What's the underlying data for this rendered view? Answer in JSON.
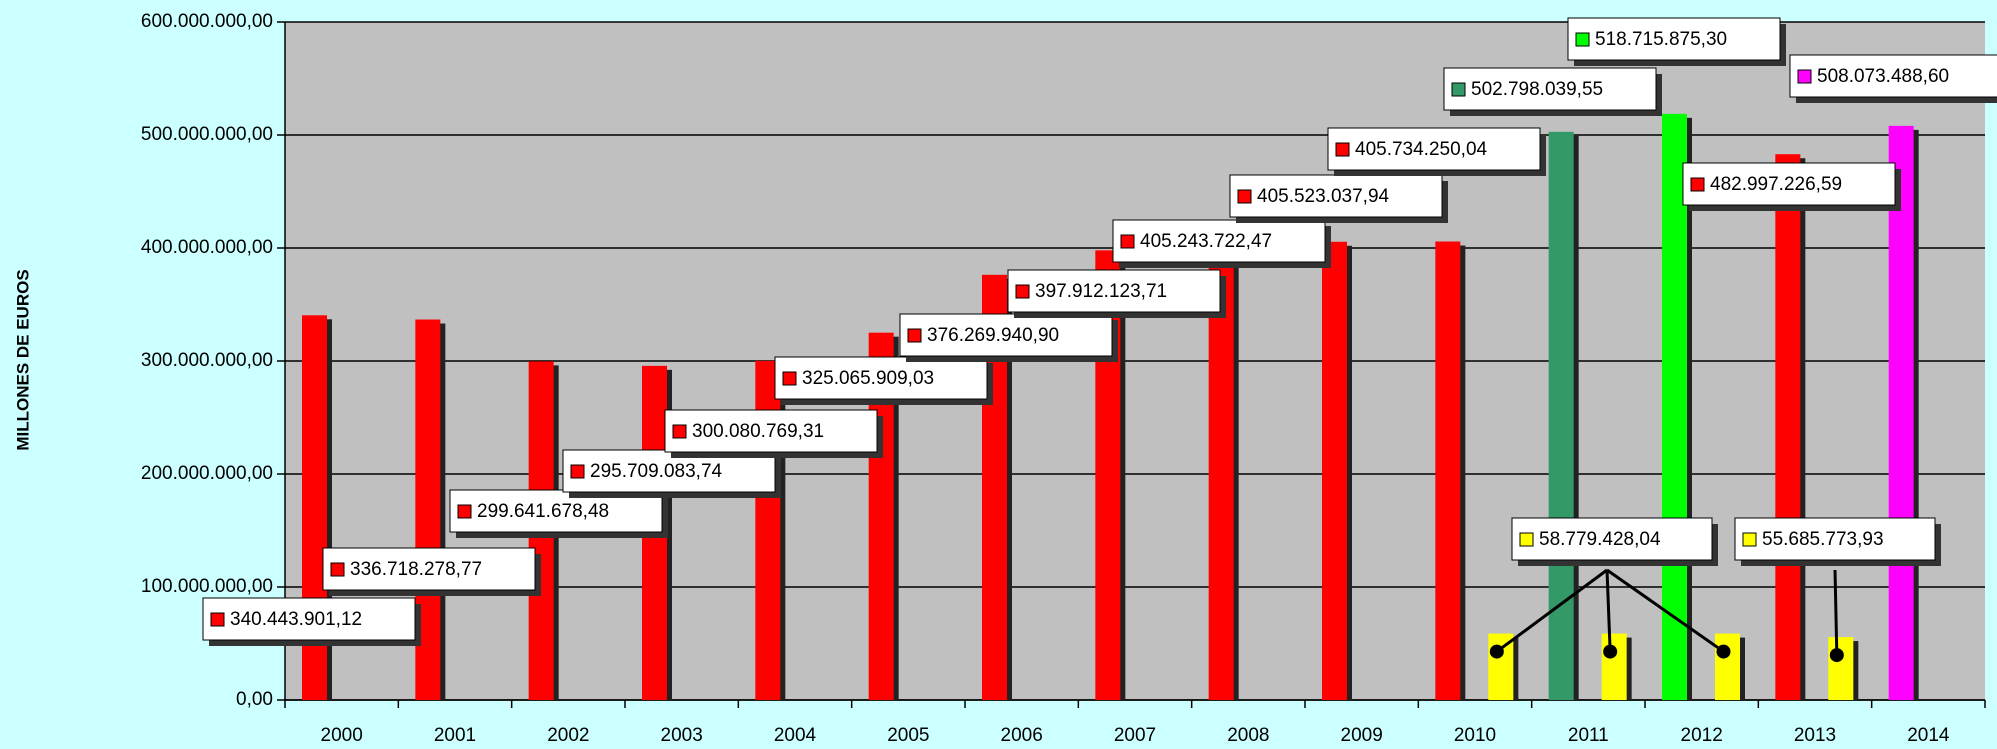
{
  "chart_data": {
    "type": "bar",
    "y_label": "MILLONES DE EUROS",
    "categories": [
      "2000",
      "2001",
      "2002",
      "2003",
      "2004",
      "2005",
      "2006",
      "2007",
      "2008",
      "2009",
      "2010",
      "2011",
      "2012",
      "2013",
      "2014"
    ],
    "series": [
      {
        "color": "#ff0000",
        "values": [
          340443901.12,
          336718278.77,
          299641678.48,
          295709083.74,
          300080769.31,
          325065909.03,
          376269940.9,
          397912123.71,
          405243722.47,
          405523037.94,
          405734250.04,
          null,
          null,
          482997226.59,
          null
        ],
        "value_labels": [
          "340.443.901,12",
          "336.718.278,77",
          "299.641.678,48",
          "295.709.083,74",
          "300.080.769,31",
          "325.065.909,03",
          "376.269.940,90",
          "397.912.123,71",
          "405.243.722,47",
          "405.523.037,94",
          "405.734.250,04",
          null,
          null,
          "482.997.226,59",
          null
        ]
      },
      {
        "color": "#339966",
        "values": [
          null,
          null,
          null,
          null,
          null,
          null,
          null,
          null,
          null,
          null,
          null,
          502798039.55,
          null,
          null,
          null
        ],
        "value_labels": [
          null,
          null,
          null,
          null,
          null,
          null,
          null,
          null,
          null,
          null,
          null,
          "502.798.039,55",
          null,
          null,
          null
        ]
      },
      {
        "color": "#00ff00",
        "values": [
          null,
          null,
          null,
          null,
          null,
          null,
          null,
          null,
          null,
          null,
          null,
          null,
          518715875.3,
          null,
          null
        ],
        "value_labels": [
          null,
          null,
          null,
          null,
          null,
          null,
          null,
          null,
          null,
          null,
          null,
          null,
          "518.715.875,30",
          null,
          null
        ]
      },
      {
        "color": "#ff00ff",
        "values": [
          null,
          null,
          null,
          null,
          null,
          null,
          null,
          null,
          null,
          null,
          null,
          null,
          null,
          null,
          508073488.6
        ],
        "value_labels": [
          null,
          null,
          null,
          null,
          null,
          null,
          null,
          null,
          null,
          null,
          null,
          null,
          null,
          null,
          "508.073.488,60"
        ]
      },
      {
        "color": "#ffff00",
        "values": [
          null,
          null,
          null,
          null,
          null,
          null,
          null,
          null,
          null,
          null,
          58779428.04,
          58779428.04,
          58779428.04,
          55685773.93,
          null
        ],
        "value_labels": [
          null,
          null,
          null,
          null,
          null,
          null,
          null,
          null,
          null,
          null,
          null,
          "58.779.428,04",
          null,
          "55.685.773,93",
          null
        ]
      }
    ],
    "ylim": [
      0,
      600000000
    ],
    "yticks": [
      {
        "value": 0,
        "label": "0,00"
      },
      {
        "value": 100000000,
        "label": "100.000.000,00"
      },
      {
        "value": 200000000,
        "label": "200.000.000,00"
      },
      {
        "value": 300000000,
        "label": "300.000.000,00"
      },
      {
        "value": 400000000,
        "label": "400.000.000,00"
      },
      {
        "value": 500000000,
        "label": "500.000.000,00"
      },
      {
        "value": 600000000,
        "label": "600.000.000,00"
      }
    ],
    "grid": true
  }
}
